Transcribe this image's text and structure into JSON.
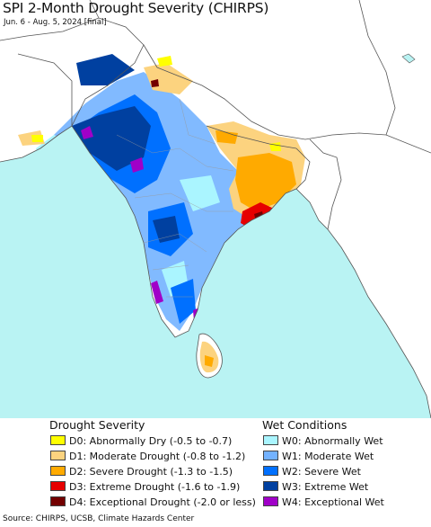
{
  "title": "SPI 2-Month Drought Severity (CHIRPS)",
  "subtitle": "Jun. 6 - Aug. 5, 2024 [final]",
  "map": {
    "ocean_color": "#b9f3f3",
    "land_color": "#ffffff",
    "border_color": "#555555"
  },
  "legend": {
    "drought": {
      "title": "Drought Severity",
      "items": [
        {
          "code": "D0",
          "label": "D0: Abnormally Dry (-0.5 to -0.7)",
          "color": "#ffff00"
        },
        {
          "code": "D1",
          "label": "D1: Moderate Drought (-0.8 to -1.2)",
          "color": "#fcd37f"
        },
        {
          "code": "D2",
          "label": "D2: Severe Drought (-1.3 to -1.5)",
          "color": "#ffaa00"
        },
        {
          "code": "D3",
          "label": "D3: Extreme Drought (-1.6 to -1.9)",
          "color": "#e60000"
        },
        {
          "code": "D4",
          "label": "D4: Exceptional Drought (-2.0 or less)",
          "color": "#730000"
        }
      ]
    },
    "wet": {
      "title": "Wet Conditions",
      "items": [
        {
          "code": "W0",
          "label": "W0: Abnormally Wet",
          "color": "#aaf5ff"
        },
        {
          "code": "W1",
          "label": "W1: Moderate Wet",
          "color": "#73b2ff"
        },
        {
          "code": "W2",
          "label": "W2: Severe Wet",
          "color": "#0070ff"
        },
        {
          "code": "W3",
          "label": "W3: Extreme Wet",
          "color": "#0040a0"
        },
        {
          "code": "W4",
          "label": "W4: Exceptional Wet",
          "color": "#a000c8"
        }
      ]
    }
  },
  "source": "Source: CHIRPS, UCSB, Climate Hazards Center"
}
